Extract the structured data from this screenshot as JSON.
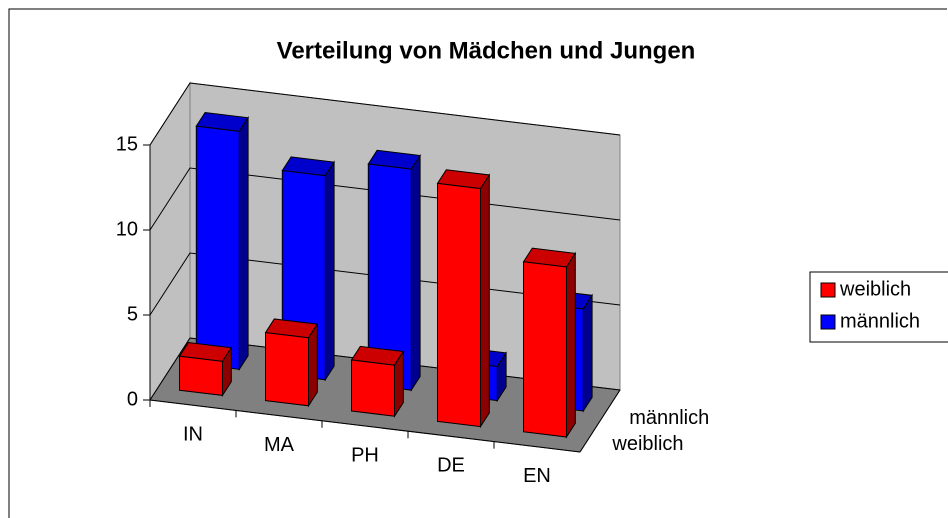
{
  "chart_data": {
    "type": "bar",
    "title": "Verteilung von Mädchen und Jungen",
    "categories": [
      "IN",
      "MA",
      "PH",
      "DE",
      "EN"
    ],
    "series": [
      {
        "name": "weiblich",
        "color": "#ff0000",
        "values": [
          2,
          4,
          3,
          14,
          10
        ]
      },
      {
        "name": "männlich",
        "color": "#0000ff",
        "values": [
          14,
          12,
          13,
          2,
          6
        ]
      }
    ],
    "ylim": [
      0,
      15
    ],
    "yticks": [
      0,
      5,
      10,
      15
    ],
    "grid": true,
    "legend": "right"
  }
}
